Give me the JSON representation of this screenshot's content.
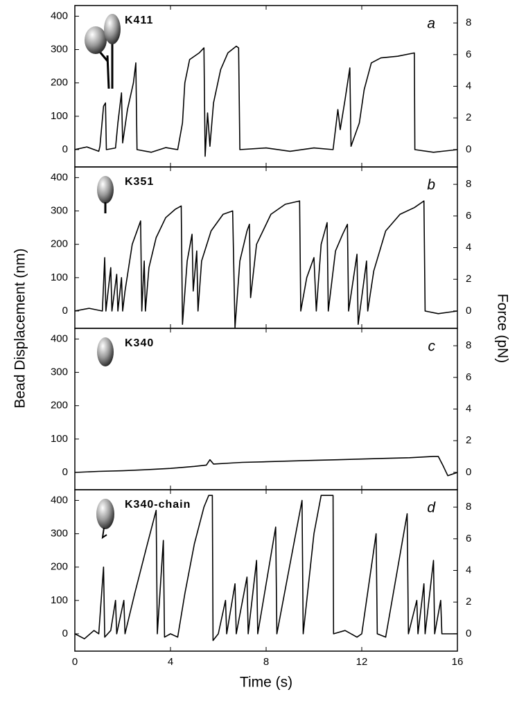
{
  "chart_data": [
    {
      "type": "line",
      "title": "K411",
      "panel_label": "a",
      "ylabel": "Bead Displacement (nm)",
      "y2label": "Force (pN)",
      "xlim": [
        0,
        16
      ],
      "ylim": [
        -52,
        432
      ],
      "yticks": [
        0,
        100,
        200,
        300,
        400
      ],
      "y2lim": [
        -1.1,
        9.1
      ],
      "y2ticks": [
        0,
        2,
        4,
        6,
        8
      ],
      "x": [
        0,
        0.5,
        1.0,
        1.05,
        1.2,
        1.28,
        1.32,
        1.7,
        1.8,
        1.95,
        2.0,
        2.2,
        2.45,
        2.55,
        2.6,
        3.2,
        3.8,
        4.3,
        4.5,
        4.6,
        4.8,
        5.2,
        5.4,
        5.45,
        5.55,
        5.65,
        5.8,
        6.1,
        6.4,
        6.75,
        6.85,
        6.9,
        8,
        9,
        10,
        10.8,
        11.0,
        11.1,
        11.3,
        11.5,
        11.55,
        11.9,
        12.1,
        12.4,
        12.8,
        13.5,
        14.2,
        14.22,
        15,
        16
      ],
      "series": [
        {
          "color": "#000000",
          "values": [
            0,
            8,
            -5,
            10,
            130,
            140,
            0,
            5,
            80,
            170,
            20,
            120,
            200,
            260,
            0,
            -8,
            6,
            0,
            80,
            200,
            270,
            290,
            305,
            -20,
            110,
            10,
            140,
            240,
            290,
            310,
            305,
            0,
            5,
            -5,
            5,
            0,
            120,
            60,
            150,
            245,
            10,
            80,
            180,
            260,
            275,
            280,
            290,
            0,
            -8,
            0
          ]
        }
      ]
    },
    {
      "type": "line",
      "title": "K351",
      "panel_label": "b",
      "xlim": [
        0,
        16
      ],
      "ylim": [
        -52,
        432
      ],
      "yticks": [
        0,
        100,
        200,
        300,
        400
      ],
      "y2lim": [
        -1.1,
        9.1
      ],
      "y2ticks": [
        0,
        2,
        4,
        6,
        8
      ],
      "x": [
        0,
        0.6,
        1.15,
        1.25,
        1.3,
        1.5,
        1.55,
        1.75,
        1.8,
        1.95,
        2.0,
        2.1,
        2.4,
        2.75,
        2.8,
        2.9,
        2.95,
        3.1,
        3.4,
        3.8,
        4.2,
        4.45,
        4.5,
        4.7,
        4.9,
        4.95,
        5.1,
        5.15,
        5.3,
        5.7,
        6.2,
        6.6,
        6.7,
        6.9,
        7.2,
        7.3,
        7.35,
        7.6,
        8.2,
        8.8,
        9.4,
        9.45,
        9.7,
        10.0,
        10.1,
        10.3,
        10.55,
        10.6,
        10.9,
        11.2,
        11.4,
        11.45,
        11.8,
        11.85,
        12.2,
        12.25,
        12.5,
        13.0,
        13.6,
        14.2,
        14.6,
        14.65,
        15.2,
        16
      ],
      "series": [
        {
          "color": "#000000",
          "values": [
            0,
            8,
            0,
            160,
            0,
            130,
            0,
            110,
            0,
            100,
            0,
            60,
            200,
            270,
            0,
            150,
            0,
            130,
            220,
            280,
            305,
            315,
            -40,
            150,
            230,
            60,
            180,
            0,
            150,
            240,
            290,
            300,
            -50,
            150,
            240,
            260,
            40,
            200,
            290,
            320,
            330,
            0,
            100,
            160,
            0,
            200,
            265,
            0,
            180,
            230,
            260,
            0,
            170,
            -40,
            150,
            0,
            120,
            240,
            290,
            310,
            330,
            0,
            -8,
            0
          ]
        }
      ]
    },
    {
      "type": "line",
      "title": "K340",
      "panel_label": "c",
      "xlim": [
        0,
        16
      ],
      "ylim": [
        -52,
        432
      ],
      "yticks": [
        0,
        100,
        200,
        300,
        400
      ],
      "y2lim": [
        -1.1,
        9.1
      ],
      "y2ticks": [
        0,
        2,
        4,
        6,
        8
      ],
      "x": [
        0,
        1,
        2,
        3,
        4,
        5,
        5.5,
        5.65,
        5.8,
        6.5,
        7,
        8,
        9,
        10,
        11,
        12,
        13,
        14,
        15,
        15.2,
        15.4,
        15.6,
        16
      ],
      "series": [
        {
          "color": "#000000",
          "values": [
            0,
            3,
            5,
            8,
            12,
            18,
            22,
            38,
            25,
            28,
            30,
            32,
            34,
            36,
            38,
            40,
            42,
            44,
            48,
            48,
            20,
            -10,
            0
          ]
        }
      ]
    },
    {
      "type": "line",
      "title": "K340-chain",
      "panel_label": "d",
      "xlabel": "Time (s)",
      "xlim": [
        0,
        16
      ],
      "xticks": [
        0,
        4,
        8,
        12,
        16
      ],
      "ylim": [
        -52,
        432
      ],
      "yticks": [
        0,
        100,
        200,
        300,
        400
      ],
      "y2lim": [
        -1.1,
        9.1
      ],
      "y2ticks": [
        0,
        2,
        4,
        6,
        8
      ],
      "x": [
        0,
        0.4,
        0.8,
        1.0,
        1.2,
        1.25,
        1.5,
        1.7,
        1.75,
        2.05,
        2.1,
        2.5,
        3.0,
        3.4,
        3.45,
        3.7,
        3.75,
        4.0,
        4.3,
        4.6,
        5.0,
        5.4,
        5.6,
        5.75,
        5.78,
        6.0,
        6.3,
        6.35,
        6.7,
        6.75,
        7.2,
        7.25,
        7.6,
        7.65,
        8.4,
        8.45,
        9.5,
        9.55,
        10.0,
        10.3,
        10.8,
        10.82,
        11.3,
        11.8,
        12.0,
        12.6,
        12.65,
        13.0,
        13.9,
        13.95,
        14.3,
        14.35,
        14.6,
        14.65,
        15.0,
        15.05,
        15.3,
        15.35,
        16
      ],
      "series": [
        {
          "color": "#000000",
          "values": [
            0,
            -15,
            10,
            0,
            200,
            -10,
            10,
            100,
            0,
            100,
            0,
            120,
            260,
            370,
            0,
            280,
            -10,
            0,
            -10,
            120,
            270,
            380,
            415,
            415,
            -20,
            0,
            100,
            0,
            150,
            0,
            170,
            0,
            220,
            0,
            320,
            0,
            400,
            0,
            300,
            415,
            415,
            0,
            10,
            -10,
            0,
            300,
            0,
            -10,
            360,
            0,
            100,
            0,
            150,
            0,
            220,
            0,
            100,
            0,
            0
          ]
        }
      ]
    }
  ]
}
